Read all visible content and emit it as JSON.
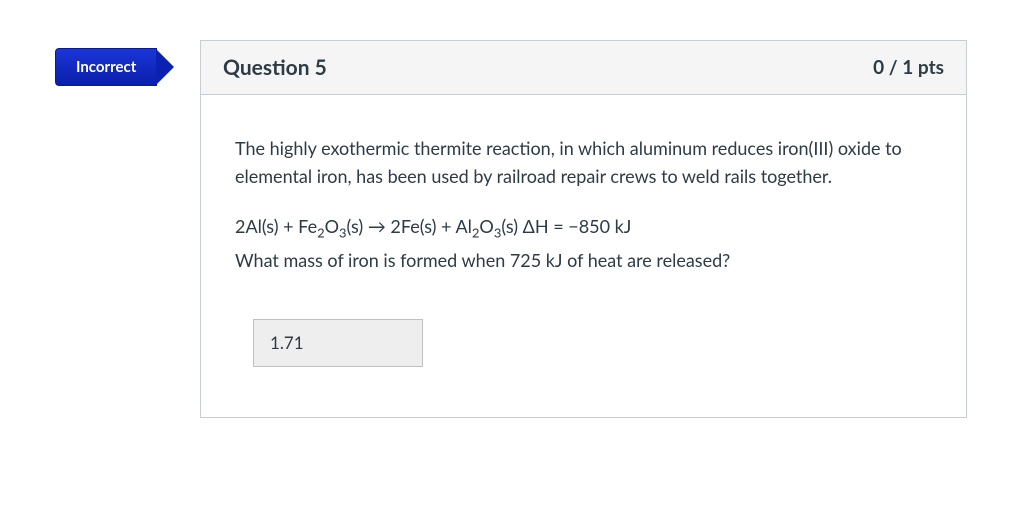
{
  "status": {
    "label": "Incorrect",
    "bg_color": "#0b21b2",
    "text_color": "#ffffff"
  },
  "header": {
    "title": "Question 5",
    "points_earned": "0",
    "points_total": "1",
    "points_display": "0 / 1 pts",
    "bg_color": "#f5f5f5"
  },
  "body": {
    "intro_text": "The highly exothermic thermite reaction, in which aluminum reduces iron(III) oxide to elemental iron, has been used by railroad repair crews to weld rails together.",
    "equation_parts": {
      "p1": "2Al(s) + Fe",
      "sub1": "2",
      "p2": "O",
      "sub2": "3",
      "p3": "(s) → 2Fe(s) + Al",
      "sub3": "2",
      "p4": "O",
      "sub4": "3",
      "p5": "(s) ΔH = −850 kJ"
    },
    "followup_text": "What mass of iron is formed when 725 kJ of heat are released?",
    "answer_value": "1.71"
  },
  "style": {
    "card_border": "#c7cdd1",
    "text_color": "#2d3b45",
    "body_fontsize": 18,
    "answer_bg": "#eeeeee",
    "answer_border": "#c0c0c0"
  }
}
